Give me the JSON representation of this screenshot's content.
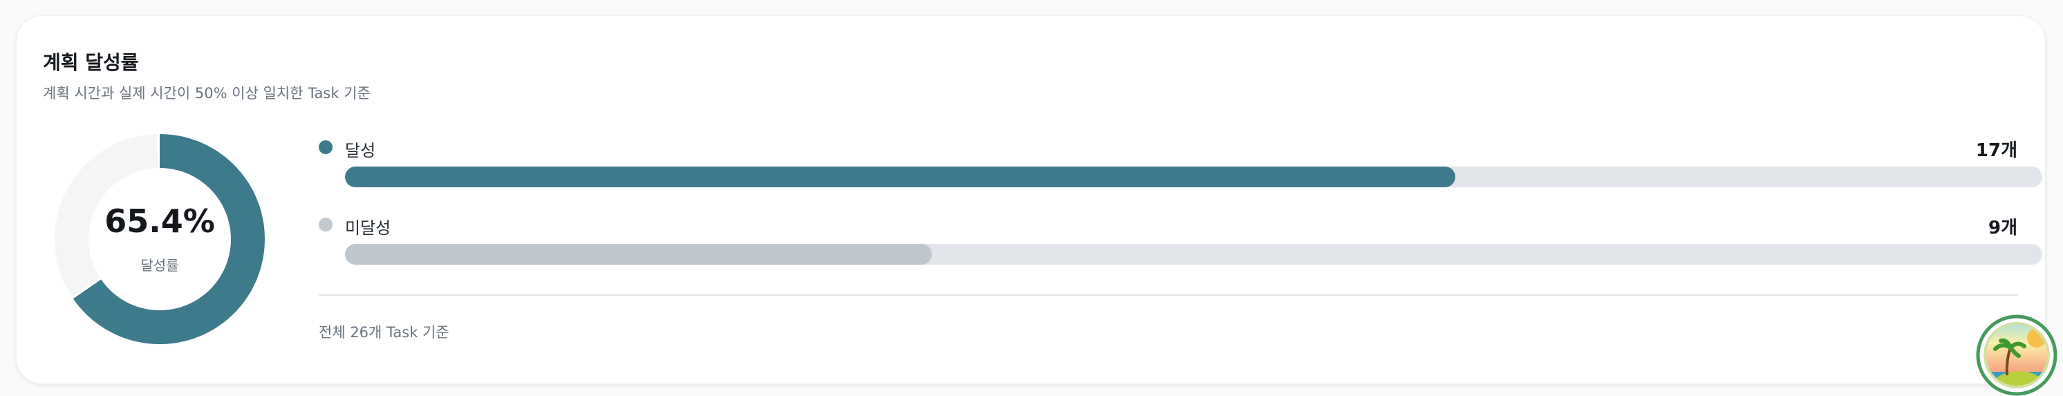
{
  "card": {
    "title": "계획 달성률",
    "subtitle": "계획 시간과 실제 시간이 50% 이상 일치한 Task 기준",
    "donut": {
      "percent_label": "65.4%",
      "percent": 65.4,
      "caption": "달성률",
      "fill_color": "#3d7a8c",
      "rest_color": "#f3f5f7"
    },
    "rows": [
      {
        "label": "달성",
        "count": "17개",
        "fraction": 0.654,
        "color": "#3d7a8c"
      },
      {
        "label": "미달성",
        "count": "9개",
        "fraction": 0.346,
        "color": "#c0c8ce"
      }
    ],
    "footer": "전체 26개 Task 기준"
  },
  "avatar": {
    "icon": "tropical-island-avatar-icon"
  }
}
